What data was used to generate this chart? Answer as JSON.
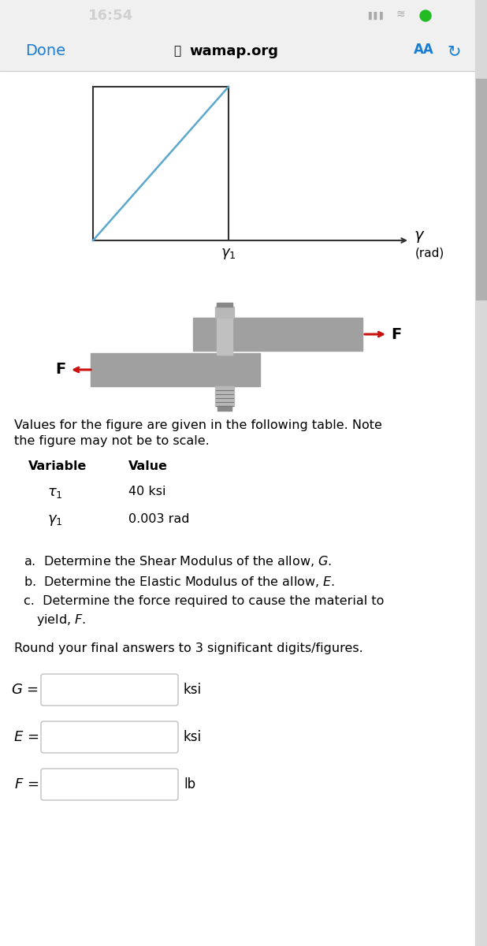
{
  "bg_color": "#f0f0f0",
  "white": "#ffffff",
  "black": "#000000",
  "dark_gray": "#333333",
  "status_time": "16:54",
  "browser_url": "wamap.org",
  "done_text": "Done",
  "aa_text": "AA",
  "graph_line_color": "#5ba8cc",
  "graph_box_color": "#333333",
  "arrow_color": "#cc1111",
  "specimen_color": "#a0a0a0",
  "bolt_color": "#b8b8b8",
  "bolt_dark": "#888888",
  "tau_val": "40 ksi",
  "gamma_val": "0.003 rad",
  "intro_line1": "Values for the figure are given in the following table. Note",
  "intro_line2": "the figure may not be to scale.",
  "ksi": "ksi",
  "lb": "lb",
  "input_border": "#c0c0c0",
  "scrollbar_bg": "#d8d8d8",
  "scrollbar_thumb": "#b0b0b0",
  "status_text_color": "#d0d0d0",
  "green_dot": "#22bb22"
}
